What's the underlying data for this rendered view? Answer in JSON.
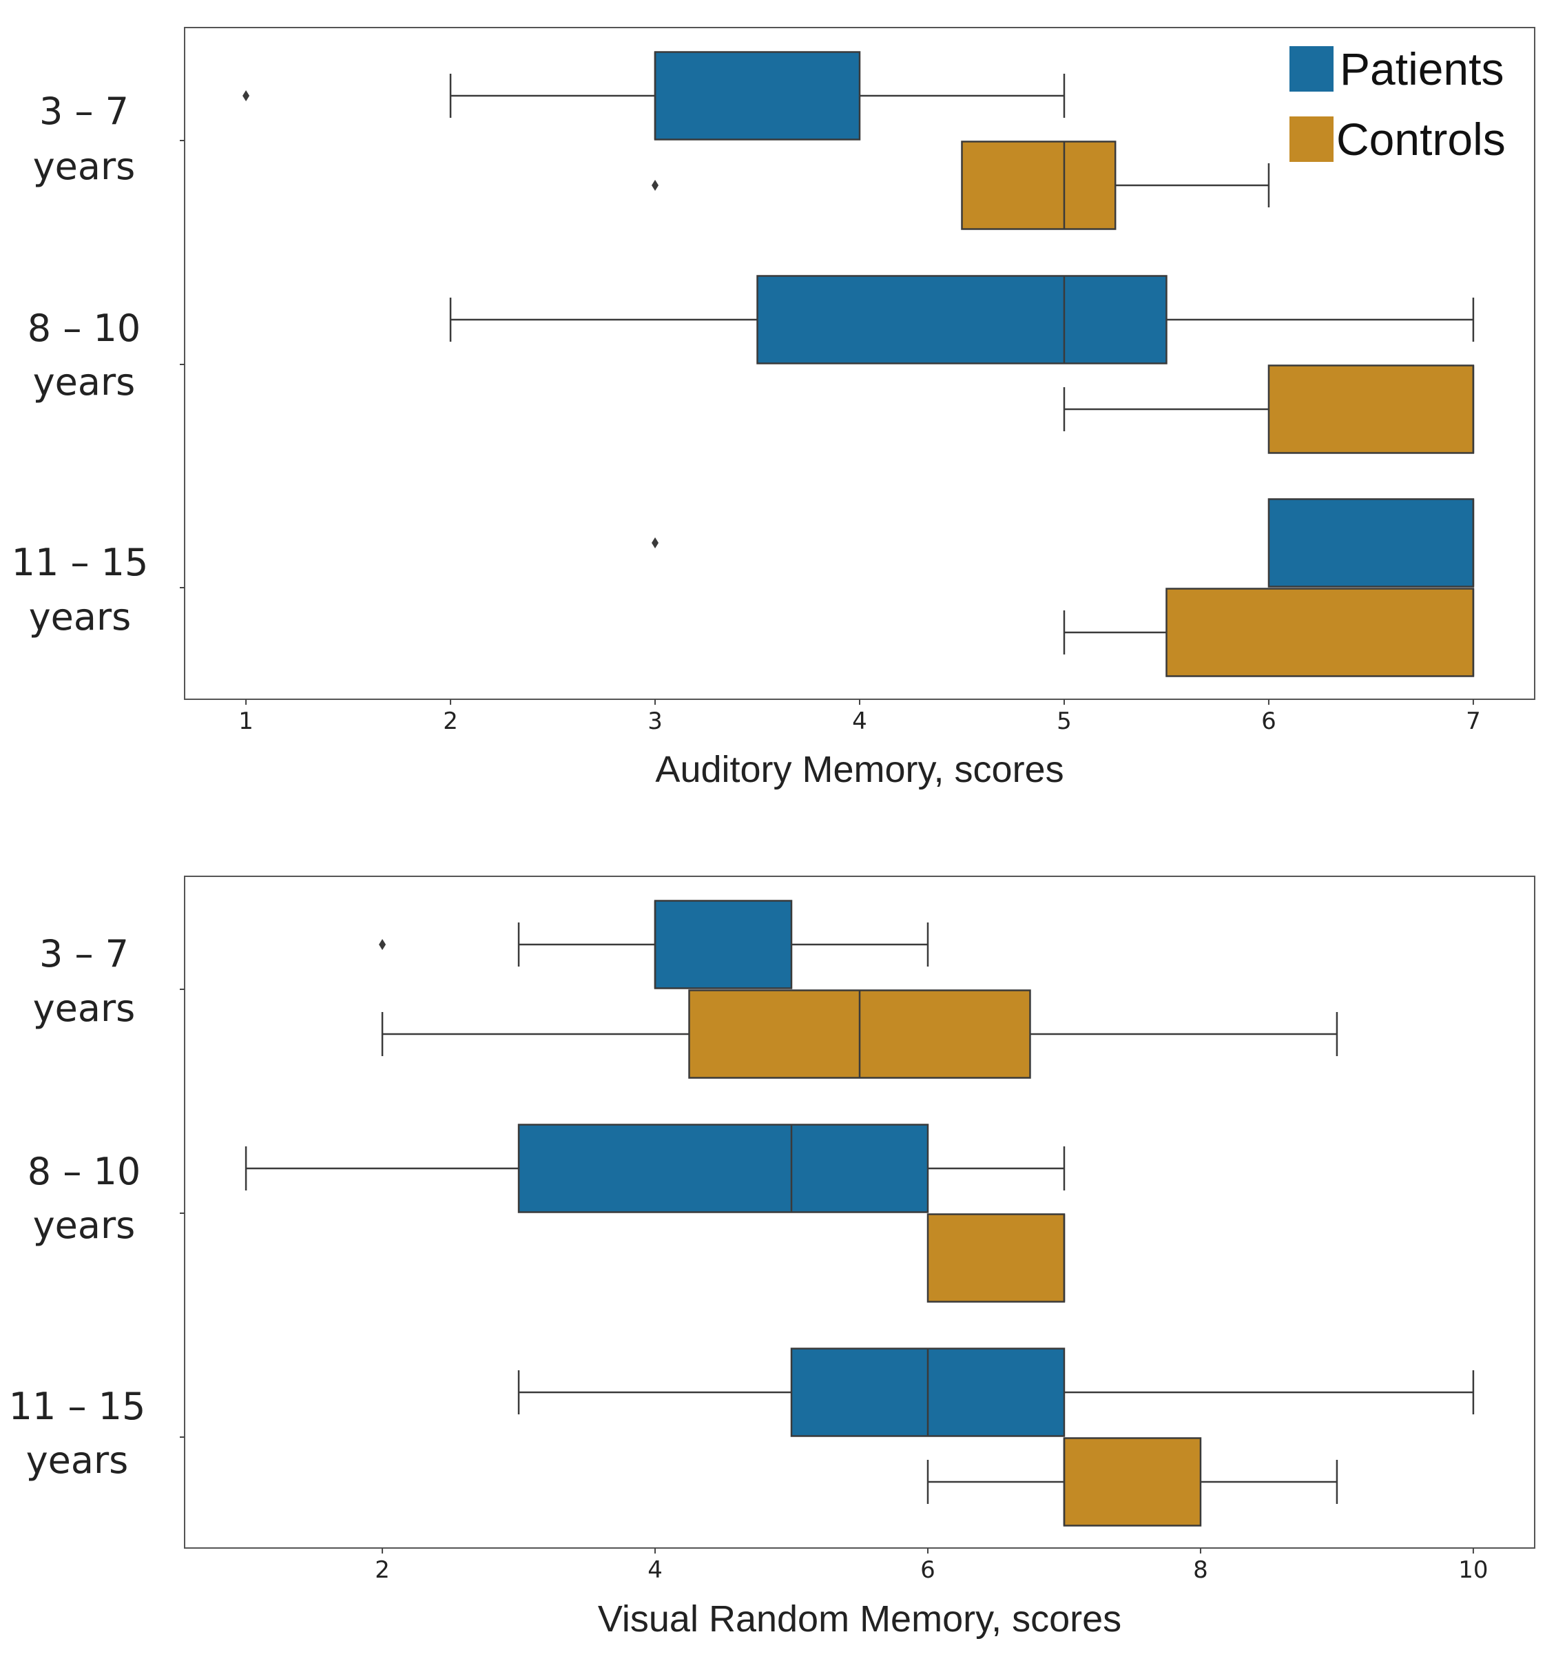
{
  "chart_data": [
    {
      "type": "box",
      "orientation": "horizontal",
      "xlabel": "Auditory Memory, scores",
      "xlim": [
        0.7,
        7.3
      ],
      "xticks": [
        1,
        2,
        3,
        4,
        5,
        6,
        7
      ],
      "groups": [
        {
          "line1": "3 – 7",
          "line2": "years"
        },
        {
          "line1": "8 – 10",
          "line2": "years"
        },
        {
          "line1": "11 – 15",
          "line2": "years"
        }
      ],
      "series": [
        {
          "name": "Patients",
          "boxes": [
            {
              "whisker_low": 2,
              "q1": 3,
              "median": 3,
              "q3": 4,
              "whisker_high": 5,
              "outliers": [
                1
              ]
            },
            {
              "whisker_low": 2,
              "q1": 3.5,
              "median": 5,
              "q3": 5.5,
              "whisker_high": 7,
              "outliers": []
            },
            {
              "whisker_low": 6,
              "q1": 6,
              "median": 7,
              "q3": 7,
              "whisker_high": 7,
              "outliers": [
                3
              ]
            }
          ]
        },
        {
          "name": "Controls",
          "boxes": [
            {
              "whisker_low": 4.5,
              "q1": 4.5,
              "median": 5,
              "q3": 5.25,
              "whisker_high": 6,
              "outliers": [
                3
              ]
            },
            {
              "whisker_low": 5,
              "q1": 6,
              "median": 7,
              "q3": 7,
              "whisker_high": 7,
              "outliers": []
            },
            {
              "whisker_low": 5,
              "q1": 5.5,
              "median": 7,
              "q3": 7,
              "whisker_high": 7,
              "outliers": []
            }
          ]
        }
      ],
      "legend": {
        "position": "top-right",
        "entries": [
          "Patients",
          "Controls"
        ]
      }
    },
    {
      "type": "box",
      "orientation": "horizontal",
      "xlabel": "Visual Random Memory, scores",
      "xlim": [
        0.55,
        10.45
      ],
      "xticks": [
        2,
        4,
        6,
        8,
        10
      ],
      "groups": [
        {
          "line1": "3 – 7",
          "line2": "years"
        },
        {
          "line1": "8 – 10",
          "line2": "years"
        },
        {
          "line1": "11 – 15",
          "line2": "years"
        }
      ],
      "series": [
        {
          "name": "Patients",
          "boxes": [
            {
              "whisker_low": 3,
              "q1": 4,
              "median": 4,
              "q3": 5,
              "whisker_high": 6,
              "outliers": [
                2
              ]
            },
            {
              "whisker_low": 1,
              "q1": 3,
              "median": 5,
              "q3": 6,
              "whisker_high": 7,
              "outliers": []
            },
            {
              "whisker_low": 3,
              "q1": 5,
              "median": 6,
              "q3": 7,
              "whisker_high": 10,
              "outliers": []
            }
          ]
        },
        {
          "name": "Controls",
          "boxes": [
            {
              "whisker_low": 2,
              "q1": 4.25,
              "median": 5.5,
              "q3": 6.75,
              "whisker_high": 9,
              "outliers": []
            },
            {
              "whisker_low": 6,
              "q1": 6,
              "median": 7,
              "q3": 7,
              "whisker_high": 7,
              "outliers": []
            },
            {
              "whisker_low": 6,
              "q1": 7,
              "median": 7,
              "q3": 8,
              "whisker_high": 9,
              "outliers": []
            }
          ]
        }
      ]
    }
  ],
  "colors": {
    "Patients": "#1a6d9e",
    "Controls": "#c38a25",
    "edge": "#3a3a3a"
  }
}
